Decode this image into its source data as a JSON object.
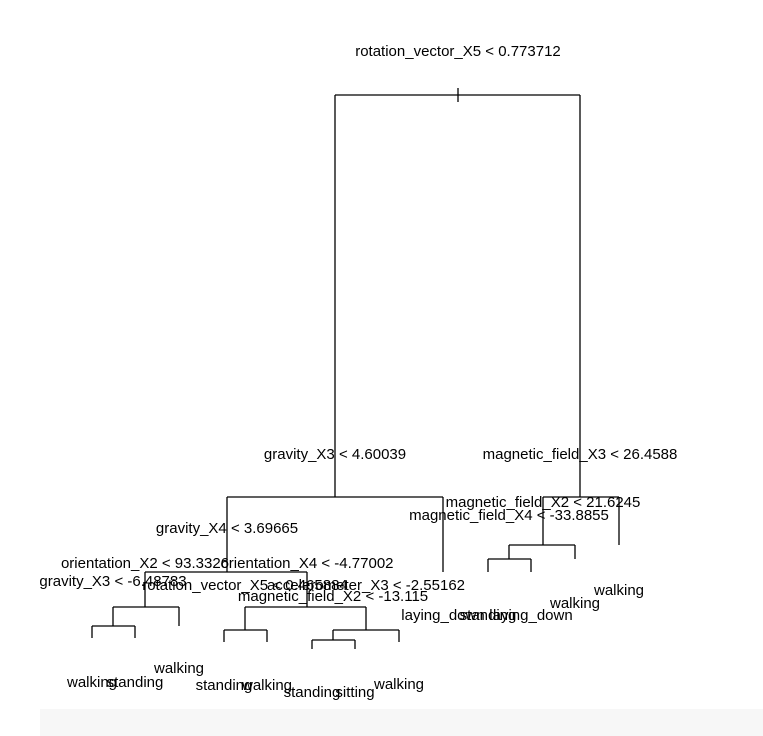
{
  "tree": {
    "splits": {
      "root": "rotation_vector_X5 < 0.773712",
      "left": "gravity_X3 < 4.60039",
      "right": "magnetic_field_X3 < 26.4588",
      "left_left": "gravity_X4 < 3.69665",
      "left_left_left": "orientation_X2 < 93.3326",
      "left_left_left_left": "gravity_X3 < -6.48783",
      "left_left_left_right": "rotation_vector_X5 < 0.465884",
      "left_left_right": "orientation_X4 < -4.77002",
      "left_left_right_left": "accelerometer_X3 < -2.55162",
      "left_left_right_right": "magnetic_field_X2 < -13.115",
      "right_left": "magnetic_field_X2 < 21.6245",
      "right_left_left": "magnetic_field_X4 < -33.8855"
    },
    "leaves": {
      "l1": "walking",
      "l2": "standing",
      "l3": "walking",
      "l4": "standing",
      "l5": "walking",
      "l6": "standing",
      "l7": "sitting",
      "l8": "walking",
      "l9": "laying_down",
      "l10": "standing",
      "l11": "laying_down",
      "l12": "walking",
      "l13": "walking"
    }
  }
}
